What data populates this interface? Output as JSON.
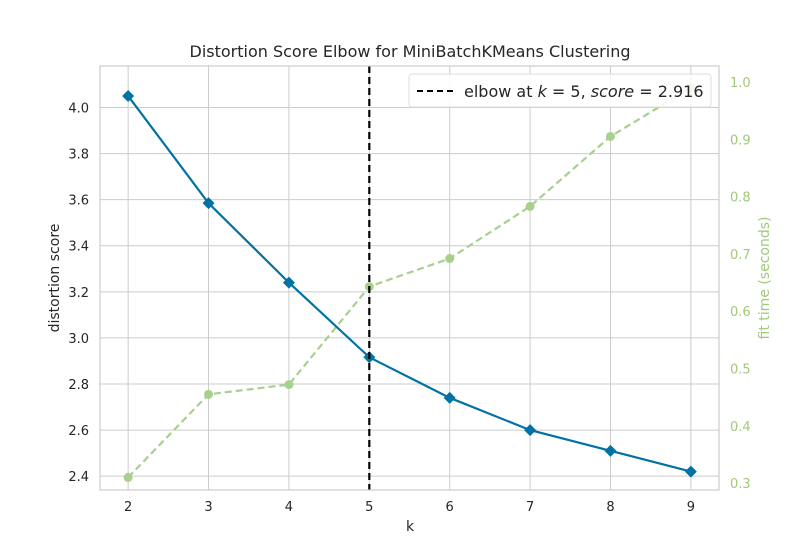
{
  "chart_data": {
    "type": "line",
    "title": "Distortion Score Elbow for MiniBatchKMeans Clustering",
    "xlabel": "k",
    "ylabel": "distortion score",
    "y2label": "fit time (seconds)",
    "x": [
      2,
      3,
      4,
      5,
      6,
      7,
      8,
      9
    ],
    "xticks": [
      "2",
      "3",
      "4",
      "5",
      "6",
      "7",
      "8",
      "9"
    ],
    "xlim": [
      1.65,
      9.35
    ],
    "ylim": [
      2.34,
      4.18
    ],
    "yticks": [
      "2.4",
      "2.6",
      "2.8",
      "3.0",
      "3.2",
      "3.4",
      "3.6",
      "3.8",
      "4.0"
    ],
    "y2lim": [
      0.288,
      1.028
    ],
    "y2ticks": [
      "0.3",
      "0.4",
      "0.5",
      "0.6",
      "0.7",
      "0.8",
      "0.9",
      "1.0"
    ],
    "grid": true,
    "legend_position": "top-right",
    "series": [
      {
        "axis": "left",
        "color": "#0072a3",
        "marker": "diamond",
        "values": [
          4.05,
          3.585,
          3.24,
          2.916,
          2.74,
          2.6,
          2.51,
          2.42
        ]
      },
      {
        "axis": "right",
        "color": "#a8d08d",
        "marker": "circle",
        "style": "dashed",
        "values": [
          0.31,
          0.455,
          0.472,
          0.643,
          0.692,
          0.783,
          0.905,
          0.99
        ]
      }
    ],
    "elbow": {
      "k": 5,
      "score": "2.916",
      "color": "#000000",
      "legend_prefix": "elbow at ",
      "legend_k": "k",
      "legend_eq_k": " = 5, ",
      "legend_score": "score",
      "legend_eq_score": " = 2.916"
    }
  }
}
